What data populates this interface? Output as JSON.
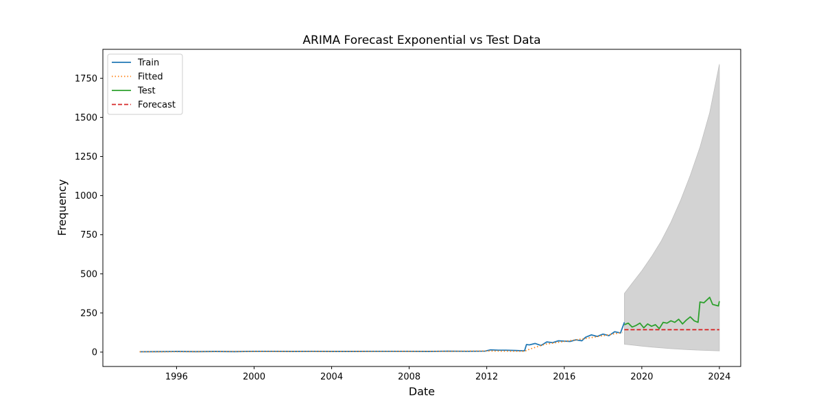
{
  "chart_data": {
    "type": "line",
    "title": "ARIMA Forecast Exponential vs Test Data",
    "xlabel": "Date",
    "ylabel": "Frequency",
    "xlim": [
      1992.2,
      2025.1
    ],
    "ylim": [
      -92,
      1935
    ],
    "x_ticks": [
      1996,
      2000,
      2004,
      2008,
      2012,
      2016,
      2020,
      2024
    ],
    "y_ticks": [
      0,
      250,
      500,
      750,
      1000,
      1250,
      1500,
      1750
    ],
    "legend_position": "upper-left",
    "grid": false,
    "colors": {
      "train": "#1f77b4",
      "fitted": "#ff7f0e",
      "test": "#2ca02c",
      "forecast": "#d62728",
      "confidence_band": "#d3d3d3"
    },
    "series": [
      {
        "name": "Train",
        "style": "solid",
        "x": [
          1994.1,
          1995.0,
          1996.0,
          1997.0,
          1998.0,
          1999.0,
          2000.0,
          2001.0,
          2002.0,
          2003.0,
          2004.0,
          2005.0,
          2006.0,
          2007.0,
          2008.0,
          2009.0,
          2010.0,
          2011.0,
          2011.9,
          2012.2,
          2012.6,
          2013.0,
          2013.5,
          2013.95,
          2014.05,
          2014.2,
          2014.5,
          2014.8,
          2015.1,
          2015.4,
          2015.7,
          2016.0,
          2016.3,
          2016.6,
          2016.9,
          2017.1,
          2017.4,
          2017.7,
          2018.0,
          2018.3,
          2018.6,
          2018.9,
          2019.1
        ],
        "y": [
          2,
          3,
          4,
          3,
          4,
          3,
          5,
          5,
          4,
          5,
          4,
          4,
          5,
          5,
          5,
          4,
          6,
          5,
          6,
          14,
          12,
          12,
          10,
          8,
          48,
          46,
          55,
          42,
          65,
          60,
          72,
          70,
          68,
          78,
          72,
          95,
          110,
          100,
          115,
          105,
          130,
          122,
          190
        ]
      },
      {
        "name": "Fitted",
        "style": "dotted",
        "x": [
          1994.1,
          2000.0,
          2005.0,
          2010.0,
          2012.0,
          2013.95,
          2014.2,
          2015.0,
          2016.0,
          2017.0,
          2018.0,
          2019.0
        ],
        "y": [
          2,
          4,
          4,
          5,
          7,
          5,
          18,
          50,
          68,
          85,
          105,
          125
        ]
      },
      {
        "name": "Test",
        "style": "solid",
        "x": [
          2019.1,
          2019.3,
          2019.5,
          2019.7,
          2019.9,
          2020.1,
          2020.3,
          2020.5,
          2020.7,
          2020.9,
          2021.1,
          2021.3,
          2021.5,
          2021.7,
          2021.9,
          2022.1,
          2022.3,
          2022.5,
          2022.7,
          2022.9,
          2023.0,
          2023.2,
          2023.5,
          2023.65,
          2023.8,
          2023.95,
          2024.0
        ],
        "y": [
          175,
          185,
          160,
          170,
          185,
          155,
          180,
          165,
          175,
          150,
          190,
          185,
          200,
          190,
          210,
          180,
          205,
          225,
          200,
          190,
          320,
          315,
          350,
          305,
          300,
          295,
          325
        ]
      },
      {
        "name": "Forecast",
        "style": "dashed",
        "x": [
          2019.1,
          2024.0
        ],
        "y": [
          143,
          143
        ]
      }
    ],
    "confidence_band": {
      "x": [
        2019.1,
        2019.5,
        2020.0,
        2020.5,
        2021.0,
        2021.5,
        2022.0,
        2022.5,
        2023.0,
        2023.5,
        2024.0
      ],
      "lower": [
        50,
        45,
        38,
        32,
        27,
        22,
        18,
        15,
        12,
        10,
        8
      ],
      "upper": [
        375,
        440,
        520,
        610,
        710,
        830,
        970,
        1130,
        1310,
        1530,
        1840
      ]
    }
  }
}
